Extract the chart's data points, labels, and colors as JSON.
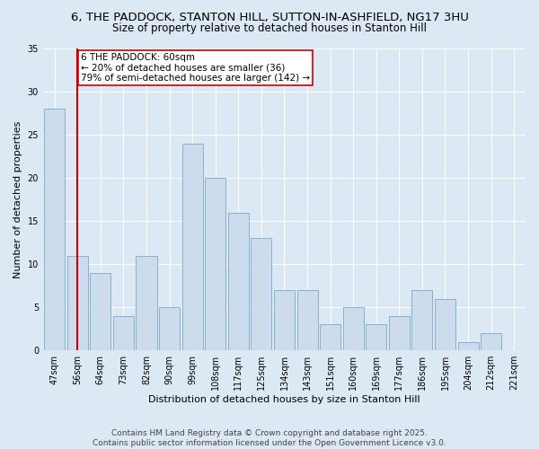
{
  "title1": "6, THE PADDOCK, STANTON HILL, SUTTON-IN-ASHFIELD, NG17 3HU",
  "title2": "Size of property relative to detached houses in Stanton Hill",
  "xlabel": "Distribution of detached houses by size in Stanton Hill",
  "ylabel": "Number of detached properties",
  "categories": [
    "47sqm",
    "56sqm",
    "64sqm",
    "73sqm",
    "82sqm",
    "90sqm",
    "99sqm",
    "108sqm",
    "117sqm",
    "125sqm",
    "134sqm",
    "143sqm",
    "151sqm",
    "160sqm",
    "169sqm",
    "177sqm",
    "186sqm",
    "195sqm",
    "204sqm",
    "212sqm",
    "221sqm"
  ],
  "values": [
    28,
    11,
    9,
    4,
    11,
    5,
    24,
    20,
    16,
    13,
    7,
    7,
    3,
    5,
    3,
    4,
    7,
    6,
    1,
    2,
    0
  ],
  "bar_color": "#ccdcec",
  "bar_edge_color": "#7aaac8",
  "subject_line_color": "#cc0000",
  "annotation_text": "6 THE PADDOCK: 60sqm\n← 20% of detached houses are smaller (36)\n79% of semi-detached houses are larger (142) →",
  "annotation_box_color": "#ffffff",
  "annotation_box_edge_color": "#cc0000",
  "ylim": [
    0,
    35
  ],
  "yticks": [
    0,
    5,
    10,
    15,
    20,
    25,
    30,
    35
  ],
  "background_color": "#dce8f4",
  "grid_color": "#ffffff",
  "footer": "Contains HM Land Registry data © Crown copyright and database right 2025.\nContains public sector information licensed under the Open Government Licence v3.0.",
  "title_fontsize": 9.5,
  "subtitle_fontsize": 8.5,
  "axis_label_fontsize": 8,
  "tick_fontsize": 7,
  "annotation_fontsize": 7.5,
  "footer_fontsize": 6.5
}
